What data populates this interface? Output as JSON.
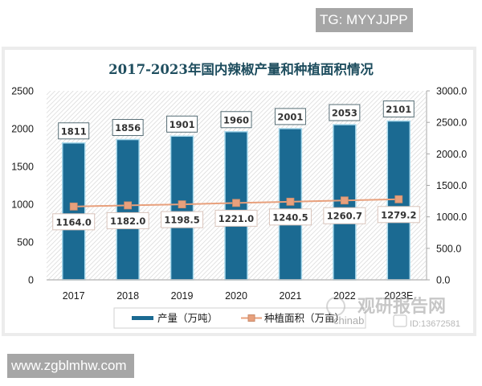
{
  "watermarks": {
    "top_tag": "TG: MYYJJPP",
    "bottom_url": "www.zgblmhw.com",
    "logo_cn": "观研报告网",
    "logo_en": "chinab",
    "logo_id": "ID:13672581"
  },
  "chart_data": {
    "type": "bar",
    "title": "2017-2023年国内辣椒产量和种植面积情况",
    "xlabel": "",
    "ylabel": "",
    "categories": [
      "2017",
      "2018",
      "2019",
      "2020",
      "2021",
      "2022",
      "2023E"
    ],
    "series": [
      {
        "name": "产量（万吨）",
        "type": "bar",
        "axis": "left",
        "color": "#1b6a92",
        "values": [
          1811,
          1856,
          1901,
          1960,
          2001,
          2053,
          2101
        ],
        "labels": [
          "1811",
          "1856",
          "1901",
          "1960",
          "2001",
          "2053",
          "2101"
        ]
      },
      {
        "name": "种植面积（万亩）",
        "type": "line",
        "axis": "right",
        "color": "#e8a07c",
        "values": [
          1164.0,
          1182.0,
          1198.5,
          1221.0,
          1240.5,
          1260.7,
          1279.2
        ],
        "labels": [
          "1164.0",
          "1182.0",
          "1198.5",
          "1221.0",
          "1240.5",
          "1260.7",
          "1279.2"
        ]
      }
    ],
    "y_left": {
      "range": [
        0,
        2500
      ],
      "ticks": [
        "0",
        "500",
        "1000",
        "1500",
        "2000",
        "2500"
      ]
    },
    "y_right": {
      "range": [
        0,
        3000
      ],
      "ticks": [
        "0.0",
        "500.0",
        "1000.0",
        "1500.0",
        "2000.0",
        "2500.0",
        "3000.0"
      ]
    },
    "grid": false,
    "legend_position": "bottom",
    "plot_background": "diagonal-hatch"
  }
}
